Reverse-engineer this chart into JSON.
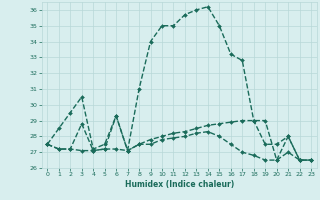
{
  "xlabel": "Humidex (Indice chaleur)",
  "xlim": [
    -0.5,
    23.5
  ],
  "ylim": [
    26,
    36.5
  ],
  "yticks": [
    26,
    27,
    28,
    29,
    30,
    31,
    32,
    33,
    34,
    35,
    36
  ],
  "xticks": [
    0,
    1,
    2,
    3,
    4,
    5,
    6,
    7,
    8,
    9,
    10,
    11,
    12,
    13,
    14,
    15,
    16,
    17,
    18,
    19,
    20,
    21,
    22,
    23
  ],
  "bg_color": "#d8eeee",
  "grid_color": "#b8d8d8",
  "line_color": "#1a6b5a",
  "line_width": 1.0,
  "marker": "D",
  "marker_size": 2.0,
  "curves": [
    {
      "x": [
        0,
        1,
        2,
        3,
        4,
        5,
        6,
        7,
        8,
        9,
        10,
        11,
        12,
        13,
        14,
        15,
        16,
        17,
        18,
        19,
        20,
        21,
        22,
        23
      ],
      "y": [
        27.5,
        28.5,
        29.5,
        30.5,
        27.2,
        27.5,
        29.3,
        27.1,
        31.0,
        34.0,
        35.0,
        35.0,
        35.7,
        36.0,
        36.2,
        35.0,
        33.2,
        32.8,
        29.0,
        27.5,
        27.5,
        28.0,
        26.5,
        26.5
      ]
    },
    {
      "x": [
        0,
        1,
        2,
        3,
        4,
        5,
        6,
        7,
        8,
        9,
        10,
        11,
        12,
        13,
        14,
        15,
        16,
        17,
        18,
        19,
        20,
        21,
        22,
        23
      ],
      "y": [
        27.5,
        27.2,
        27.2,
        27.1,
        27.1,
        27.2,
        27.2,
        27.1,
        27.5,
        27.8,
        28.0,
        28.2,
        28.3,
        28.5,
        28.7,
        28.8,
        28.9,
        29.0,
        29.0,
        29.0,
        26.5,
        28.0,
        26.5,
        26.5
      ]
    },
    {
      "x": [
        0,
        1,
        2,
        3,
        4,
        5,
        6,
        7,
        8,
        9,
        10,
        11,
        12,
        13,
        14,
        15,
        16,
        17,
        18,
        19,
        20,
        21,
        22,
        23
      ],
      "y": [
        27.5,
        27.2,
        27.2,
        28.8,
        27.1,
        27.2,
        29.3,
        27.1,
        27.5,
        27.5,
        27.8,
        27.9,
        28.0,
        28.2,
        28.3,
        28.0,
        27.5,
        27.0,
        26.8,
        26.5,
        26.5,
        27.0,
        26.5,
        26.5
      ]
    }
  ]
}
